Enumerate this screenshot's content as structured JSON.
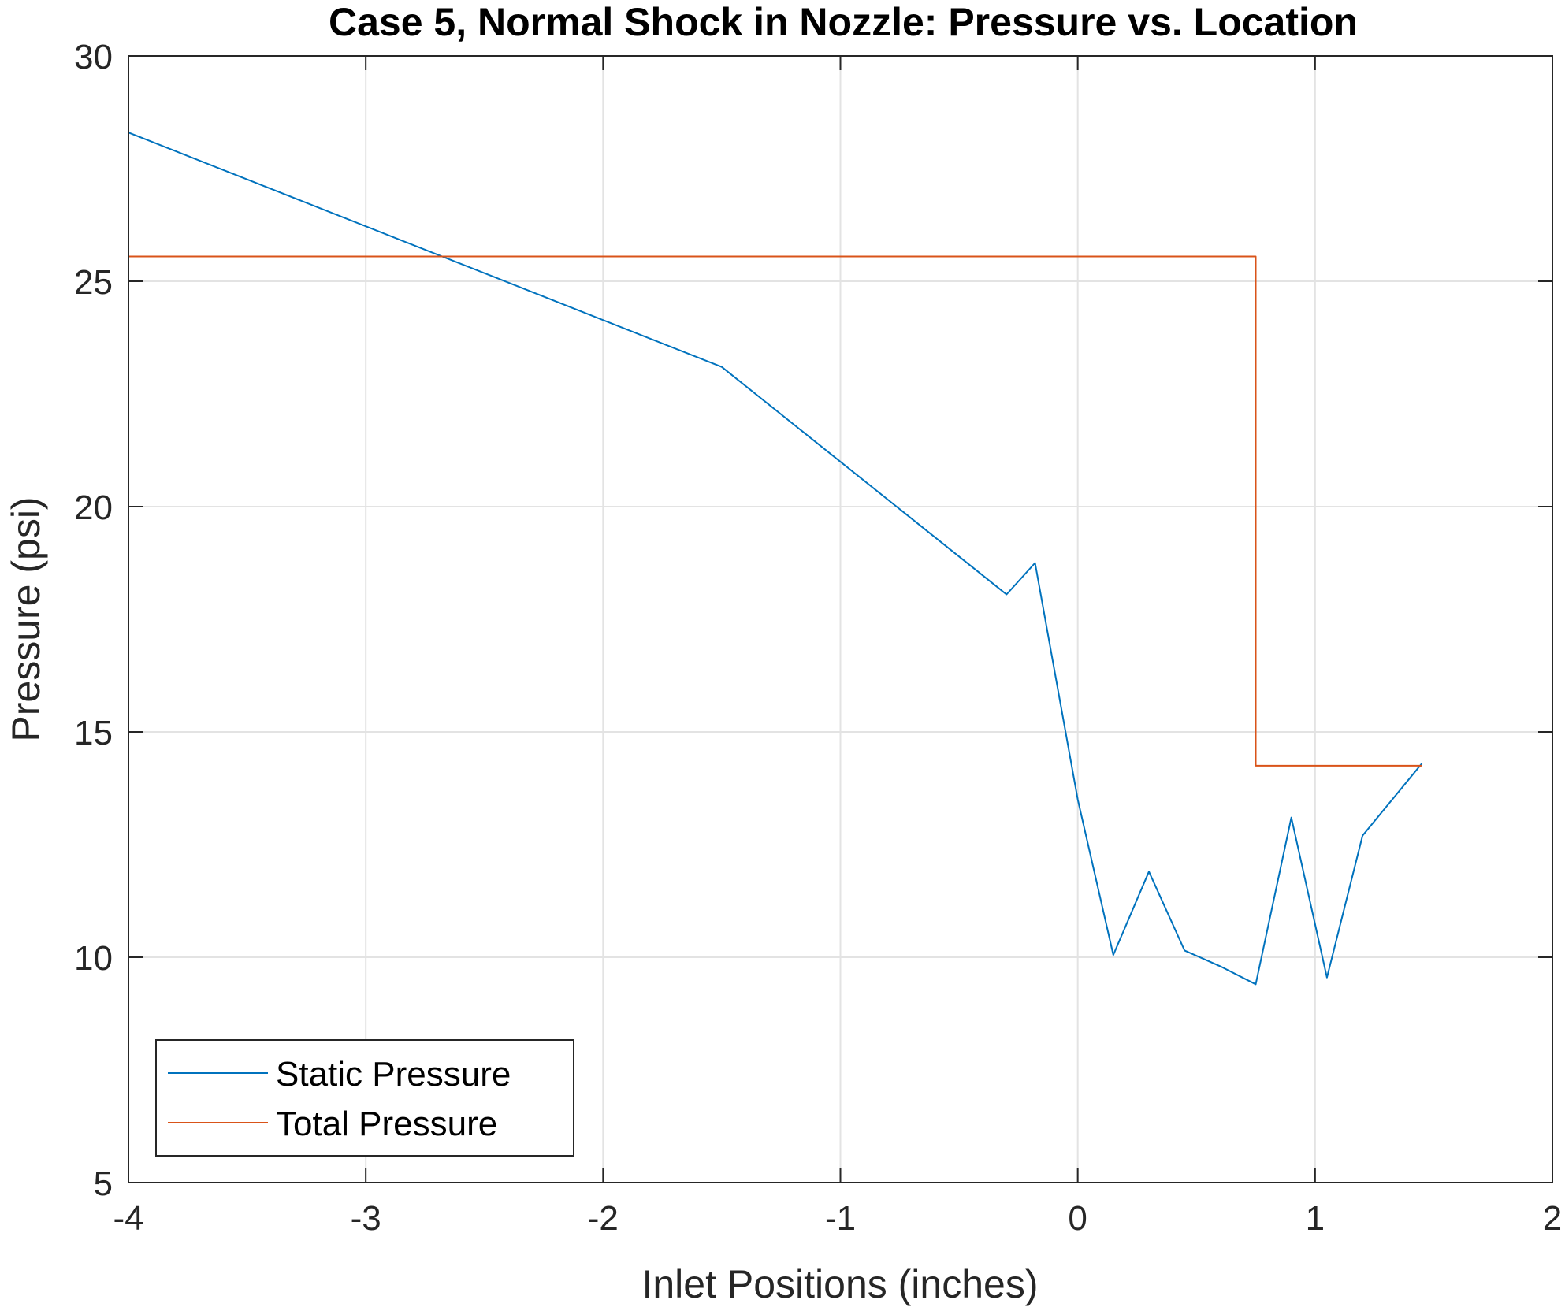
{
  "chart_data": {
    "type": "line",
    "title": "Case 5, Normal Shock in Nozzle: Pressure vs. Location",
    "xlabel": "Inlet Positions (inches)",
    "ylabel": "Pressure (psi)",
    "xlim": [
      -4,
      2
    ],
    "ylim": [
      5,
      30
    ],
    "xticks": [
      -4,
      -3,
      -2,
      -1,
      0,
      1,
      2
    ],
    "yticks": [
      5,
      10,
      15,
      20,
      25,
      30
    ],
    "grid": true,
    "legend_position": "bottom-left",
    "series": [
      {
        "name": "Static Pressure",
        "color": "#0072BD",
        "x": [
          -4,
          -1.5,
          -0.3,
          -0.18,
          0,
          0.15,
          0.3,
          0.45,
          0.6,
          0.75,
          0.9,
          1.05,
          1.2,
          1.45
        ],
        "y": [
          28.3,
          23.1,
          18.05,
          18.75,
          13.5,
          10.05,
          11.9,
          10.15,
          9.8,
          9.4,
          13.1,
          9.55,
          12.7,
          14.3
        ]
      },
      {
        "name": "Total Pressure",
        "color": "#D95319",
        "x": [
          -4,
          0.75,
          0.75,
          1.45
        ],
        "y": [
          25.55,
          25.55,
          14.25,
          14.25
        ]
      }
    ]
  }
}
